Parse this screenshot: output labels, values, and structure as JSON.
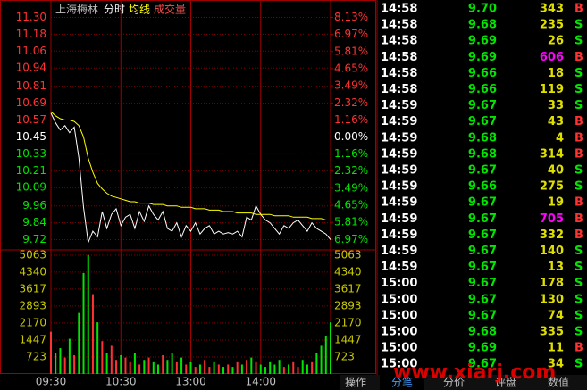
{
  "chart_data": [
    {
      "type": "line",
      "title": "上海梅林",
      "x": [
        0,
        4,
        8,
        12,
        16,
        20,
        24,
        28,
        32,
        36,
        40,
        44,
        48,
        52,
        56,
        60,
        64,
        68,
        72,
        76,
        80,
        84,
        88,
        92,
        96,
        100,
        104,
        108,
        112,
        116,
        120,
        124,
        128,
        132,
        136,
        140,
        144,
        148,
        152,
        156,
        160,
        164,
        168,
        172,
        176,
        180,
        184,
        188,
        192,
        196,
        200,
        204,
        208,
        212,
        216,
        220,
        224,
        228,
        232,
        236,
        240
      ],
      "xlim": [
        0,
        240
      ],
      "xticks": [
        {
          "value": 0,
          "label": "09:30"
        },
        {
          "value": 60,
          "label": "10:30"
        },
        {
          "value": 120,
          "label": "13:00"
        },
        {
          "value": 180,
          "label": "14:00"
        }
      ],
      "series": [
        {
          "name": "分时",
          "color": "#ffffff",
          "values": [
            10.62,
            10.55,
            10.5,
            10.53,
            10.48,
            10.52,
            10.3,
            9.95,
            9.7,
            9.78,
            9.74,
            9.92,
            9.8,
            9.9,
            9.94,
            9.82,
            9.88,
            9.9,
            9.8,
            9.92,
            9.85,
            9.96,
            9.9,
            9.86,
            9.92,
            9.8,
            9.78,
            9.84,
            9.74,
            9.82,
            9.78,
            9.84,
            9.76,
            9.8,
            9.82,
            9.76,
            9.78,
            9.76,
            9.77,
            9.76,
            9.78,
            9.74,
            9.88,
            9.86,
            9.96,
            9.9,
            9.86,
            9.84,
            9.8,
            9.76,
            9.82,
            9.8,
            9.84,
            9.86,
            9.82,
            9.78,
            9.84,
            9.8,
            9.78,
            9.76,
            9.72
          ]
        },
        {
          "name": "均线",
          "color": "#ffff00",
          "values": [
            10.63,
            10.6,
            10.58,
            10.57,
            10.57,
            10.56,
            10.53,
            10.45,
            10.3,
            10.2,
            10.12,
            10.08,
            10.05,
            10.03,
            10.02,
            10.01,
            10.0,
            9.99,
            9.99,
            9.98,
            9.98,
            9.98,
            9.97,
            9.97,
            9.97,
            9.96,
            9.96,
            9.96,
            9.95,
            9.95,
            9.95,
            9.94,
            9.94,
            9.94,
            9.93,
            9.93,
            9.93,
            9.92,
            9.92,
            9.92,
            9.91,
            9.91,
            9.91,
            9.91,
            9.9,
            9.9,
            9.9,
            9.9,
            9.89,
            9.89,
            9.89,
            9.89,
            9.88,
            9.88,
            9.88,
            9.88,
            9.87,
            9.87,
            9.87,
            9.86,
            9.86
          ]
        }
      ],
      "ylim": [
        9.66,
        11.36
      ],
      "yticks": [
        {
          "value": 11.3,
          "label": "11.30"
        },
        {
          "value": 11.18,
          "label": "11.18"
        },
        {
          "value": 11.06,
          "label": "11.06"
        },
        {
          "value": 10.94,
          "label": "10.94"
        },
        {
          "value": 10.81,
          "label": "10.81"
        },
        {
          "value": 10.69,
          "label": "10.69"
        },
        {
          "value": 10.57,
          "label": "10.57"
        },
        {
          "value": 10.45,
          "label": "10.45"
        },
        {
          "value": 10.33,
          "label": "10.33"
        },
        {
          "value": 10.21,
          "label": "10.21"
        },
        {
          "value": 10.09,
          "label": "10.09"
        },
        {
          "value": 9.96,
          "label": "9.96"
        },
        {
          "value": 9.84,
          "label": "9.84"
        },
        {
          "value": 9.72,
          "label": "9.72"
        }
      ],
      "y2lim": [
        -7.56,
        8.71
      ],
      "y2ticks": [
        {
          "value": 8.13,
          "label": "8.13%"
        },
        {
          "value": 6.97,
          "label": "6.97%"
        },
        {
          "value": 5.81,
          "label": "5.81%"
        },
        {
          "value": 4.65,
          "label": "4.65%"
        },
        {
          "value": 3.49,
          "label": "3.49%"
        },
        {
          "value": 2.32,
          "label": "2.32%"
        },
        {
          "value": 1.16,
          "label": "1.16%"
        },
        {
          "value": 0,
          "label": "0.00%"
        },
        {
          "value": -1.16,
          "label": "1.16%"
        },
        {
          "value": -2.32,
          "label": "2.32%"
        },
        {
          "value": -3.49,
          "label": "3.49%"
        },
        {
          "value": -4.65,
          "label": "4.65%"
        },
        {
          "value": -5.81,
          "label": "5.81%"
        },
        {
          "value": -6.97,
          "label": "6.97%"
        }
      ],
      "grid": true
    },
    {
      "type": "bar",
      "title": "成交量",
      "values": [
        1800,
        900,
        1100,
        700,
        1500,
        800,
        2600,
        4300,
        5063,
        3400,
        2200,
        1400,
        900,
        1200,
        600,
        800,
        700,
        500,
        900,
        400,
        600,
        700,
        500,
        400,
        800,
        600,
        900,
        500,
        700,
        400,
        500,
        300,
        400,
        600,
        300,
        500,
        400,
        300,
        400,
        300,
        500,
        400,
        600,
        700,
        500,
        400,
        300,
        500,
        400,
        600,
        300,
        400,
        500,
        300,
        600,
        400,
        500,
        900,
        1200,
        1600,
        2200
      ],
      "up_color": "#ff3232",
      "down_color": "#00e600",
      "ylim": [
        0,
        5285
      ],
      "yticks": [
        723,
        1447,
        2170,
        2893,
        3617,
        4340,
        5063
      ],
      "grid": true
    }
  ],
  "trades": {
    "rows": [
      {
        "time": "14:58",
        "price": "9.70",
        "volume": 343,
        "side": "B"
      },
      {
        "time": "14:58",
        "price": "9.68",
        "volume": 235,
        "side": "S"
      },
      {
        "time": "14:58",
        "price": "9.69",
        "volume": 26,
        "side": "S"
      },
      {
        "time": "14:58",
        "price": "9.69",
        "volume": 606,
        "side": "B",
        "volume_color": "#ff00ff"
      },
      {
        "time": "14:58",
        "price": "9.66",
        "volume": 18,
        "side": "S"
      },
      {
        "time": "14:58",
        "price": "9.66",
        "volume": 119,
        "side": "S"
      },
      {
        "time": "14:59",
        "price": "9.67",
        "volume": 33,
        "side": "S"
      },
      {
        "time": "14:59",
        "price": "9.67",
        "volume": 43,
        "side": "B"
      },
      {
        "time": "14:59",
        "price": "9.68",
        "volume": 4,
        "side": "B"
      },
      {
        "time": "14:59",
        "price": "9.68",
        "volume": 314,
        "side": "B"
      },
      {
        "time": "14:59",
        "price": "9.67",
        "volume": 40,
        "side": "S"
      },
      {
        "time": "14:59",
        "price": "9.66",
        "volume": 275,
        "side": "S"
      },
      {
        "time": "14:59",
        "price": "9.67",
        "volume": 19,
        "side": "B"
      },
      {
        "time": "14:59",
        "price": "9.67",
        "volume": 705,
        "side": "B",
        "volume_color": "#ff00ff"
      },
      {
        "time": "14:59",
        "price": "9.67",
        "volume": 332,
        "side": "B"
      },
      {
        "time": "14:59",
        "price": "9.67",
        "volume": 140,
        "side": "S"
      },
      {
        "time": "14:59",
        "price": "9.67",
        "volume": 13,
        "side": "S"
      },
      {
        "time": "15:00",
        "price": "9.67",
        "volume": 178,
        "side": "S"
      },
      {
        "time": "15:00",
        "price": "9.67",
        "volume": 130,
        "side": "S"
      },
      {
        "time": "15:00",
        "price": "9.67",
        "volume": 74,
        "side": "S"
      },
      {
        "time": "15:00",
        "price": "9.68",
        "volume": 335,
        "side": "S"
      },
      {
        "time": "15:00",
        "price": "9.69",
        "volume": 11,
        "side": "B"
      },
      {
        "time": "15:00",
        "price": "9.67",
        "volume": 34,
        "side": "S"
      }
    ]
  },
  "tabs": [
    "操作",
    "分笔",
    "分价",
    "评盘",
    "数值"
  ],
  "watermark": "www.xiarj.com"
}
